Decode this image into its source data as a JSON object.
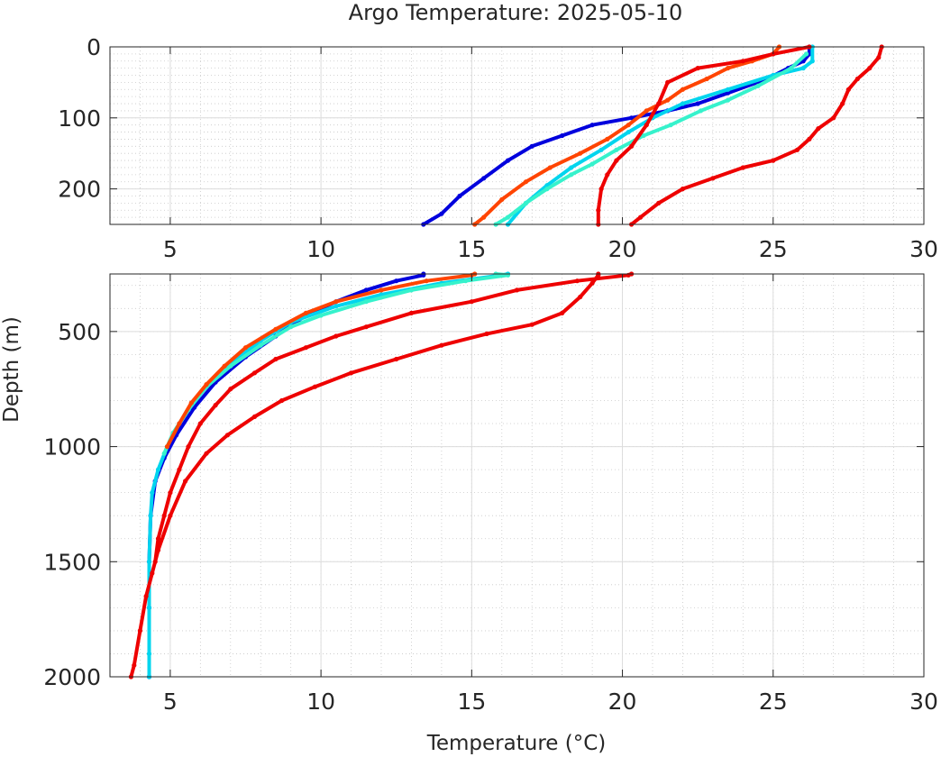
{
  "chart_data": {
    "type": "scatter",
    "title": "Argo Temperature: 2025-05-10",
    "xlabel": "Temperature (°C)",
    "ylabel": "Depth (m)",
    "grid": true,
    "minor_grid": true,
    "y_reversed": true,
    "panels": [
      {
        "name": "upper",
        "xlim": [
          3,
          30
        ],
        "ylim": [
          0,
          250
        ],
        "xticks": [
          "5",
          "10",
          "15",
          "20",
          "25",
          "30"
        ],
        "yticks": [
          "0",
          "100",
          "200"
        ],
        "xtick_values": [
          5,
          10,
          15,
          20,
          25,
          30
        ],
        "ytick_values": [
          0,
          100,
          200
        ]
      },
      {
        "name": "lower",
        "xlim": [
          3,
          30
        ],
        "ylim": [
          250,
          2000
        ],
        "xticks": [
          "5",
          "10",
          "15",
          "20",
          "25",
          "30"
        ],
        "yticks": [
          "500",
          "1000",
          "1500",
          "2000"
        ],
        "xtick_values": [
          5,
          10,
          15,
          20,
          25,
          30
        ],
        "ytick_values": [
          500,
          1000,
          1500,
          2000
        ]
      }
    ],
    "series": [
      {
        "color": "#0000dd",
        "points": [
          [
            26.2,
            0
          ],
          [
            26.2,
            10
          ],
          [
            26.0,
            20
          ],
          [
            25.5,
            30
          ],
          [
            24.8,
            45
          ],
          [
            23.5,
            65
          ],
          [
            22.5,
            80
          ],
          [
            21.5,
            90
          ],
          [
            20.3,
            100
          ],
          [
            19.0,
            110
          ],
          [
            18.0,
            125
          ],
          [
            17.0,
            140
          ],
          [
            16.2,
            160
          ],
          [
            15.4,
            185
          ],
          [
            14.6,
            210
          ],
          [
            14.0,
            235
          ],
          [
            13.4,
            250
          ],
          [
            13.4,
            255
          ],
          [
            12.5,
            280
          ],
          [
            11.5,
            320
          ],
          [
            10.5,
            370
          ],
          [
            9.5,
            430
          ],
          [
            8.5,
            520
          ],
          [
            7.5,
            610
          ],
          [
            6.5,
            720
          ],
          [
            5.8,
            830
          ],
          [
            5.2,
            950
          ],
          [
            4.8,
            1050
          ],
          [
            4.5,
            1150
          ],
          [
            4.35,
            1300
          ],
          [
            4.3,
            1500
          ],
          [
            4.3,
            1700
          ],
          [
            4.3,
            2000
          ]
        ]
      },
      {
        "color": "#00d5ee",
        "points": [
          [
            26.3,
            0
          ],
          [
            26.3,
            20
          ],
          [
            26.0,
            30
          ],
          [
            25.0,
            40
          ],
          [
            23.5,
            60
          ],
          [
            22.0,
            80
          ],
          [
            21.0,
            100
          ],
          [
            20.2,
            120
          ],
          [
            19.3,
            145
          ],
          [
            18.3,
            170
          ],
          [
            17.5,
            195
          ],
          [
            16.8,
            220
          ],
          [
            16.2,
            250
          ],
          [
            16.0,
            255
          ],
          [
            14.0,
            290
          ],
          [
            12.0,
            340
          ],
          [
            10.5,
            390
          ],
          [
            9.0,
            460
          ],
          [
            8.0,
            540
          ],
          [
            7.2,
            620
          ],
          [
            6.5,
            700
          ],
          [
            5.8,
            800
          ],
          [
            5.3,
            900
          ],
          [
            4.9,
            1000
          ],
          [
            4.6,
            1100
          ],
          [
            4.4,
            1200
          ],
          [
            4.35,
            1300
          ],
          [
            4.3,
            1500
          ],
          [
            4.3,
            1700
          ],
          [
            4.3,
            1900
          ],
          [
            4.3,
            2000
          ]
        ]
      },
      {
        "color": "#36f2cc",
        "points": [
          [
            26.1,
            10
          ],
          [
            25.6,
            30
          ],
          [
            24.5,
            55
          ],
          [
            23.5,
            75
          ],
          [
            22.6,
            90
          ],
          [
            21.6,
            110
          ],
          [
            20.7,
            125
          ],
          [
            19.8,
            145
          ],
          [
            19.0,
            165
          ],
          [
            18.3,
            180
          ],
          [
            17.5,
            200
          ],
          [
            16.8,
            220
          ],
          [
            16.2,
            240
          ],
          [
            15.8,
            250
          ],
          [
            16.2,
            255
          ],
          [
            14.8,
            280
          ],
          [
            13.0,
            320
          ],
          [
            11.5,
            370
          ],
          [
            10.0,
            430
          ],
          [
            9.0,
            480
          ],
          [
            8.0,
            560
          ],
          [
            7.0,
            650
          ],
          [
            6.2,
            740
          ],
          [
            5.6,
            840
          ],
          [
            5.1,
            940
          ],
          [
            4.8,
            1030
          ]
        ]
      },
      {
        "color": "#ff4400",
        "points": [
          [
            25.2,
            0
          ],
          [
            25.0,
            10
          ],
          [
            24.3,
            20
          ],
          [
            23.5,
            30
          ],
          [
            22.8,
            45
          ],
          [
            22.0,
            60
          ],
          [
            21.5,
            75
          ],
          [
            20.8,
            90
          ],
          [
            20.2,
            110
          ],
          [
            19.5,
            130
          ],
          [
            18.6,
            150
          ],
          [
            17.6,
            170
          ],
          [
            16.8,
            190
          ],
          [
            16.0,
            215
          ],
          [
            15.4,
            240
          ],
          [
            15.1,
            250
          ],
          [
            15.0,
            255
          ],
          [
            13.5,
            280
          ],
          [
            12.0,
            320
          ],
          [
            10.5,
            370
          ],
          [
            9.5,
            420
          ],
          [
            8.5,
            490
          ],
          [
            7.5,
            570
          ],
          [
            6.8,
            650
          ],
          [
            6.2,
            730
          ],
          [
            5.7,
            810
          ],
          [
            5.3,
            900
          ],
          [
            4.9,
            1000
          ]
        ]
      },
      {
        "color": "#ee0000",
        "points": [
          [
            26.2,
            0
          ],
          [
            25.0,
            10
          ],
          [
            24.0,
            20
          ],
          [
            22.5,
            30
          ],
          [
            21.5,
            50
          ],
          [
            21.2,
            80
          ],
          [
            20.8,
            110
          ],
          [
            20.3,
            140
          ],
          [
            19.8,
            160
          ],
          [
            19.5,
            180
          ],
          [
            19.3,
            200
          ],
          [
            19.2,
            230
          ],
          [
            19.2,
            250
          ],
          [
            19.2,
            255
          ],
          [
            19.0,
            290
          ],
          [
            18.6,
            350
          ],
          [
            18.0,
            420
          ],
          [
            17.0,
            470
          ],
          [
            15.5,
            510
          ],
          [
            14.0,
            560
          ],
          [
            12.5,
            620
          ],
          [
            11.0,
            680
          ],
          [
            9.8,
            740
          ],
          [
            8.7,
            800
          ],
          [
            7.8,
            870
          ],
          [
            6.9,
            950
          ],
          [
            6.2,
            1030
          ],
          [
            5.5,
            1150
          ],
          [
            5.0,
            1300
          ],
          [
            4.6,
            1450
          ],
          [
            4.4,
            1550
          ],
          [
            4.2,
            1650
          ],
          [
            4.0,
            1800
          ],
          [
            3.8,
            1950
          ],
          [
            3.7,
            2000
          ]
        ]
      },
      {
        "color": "#ee0000",
        "points": [
          [
            28.6,
            0
          ],
          [
            28.5,
            15
          ],
          [
            28.2,
            30
          ],
          [
            27.8,
            45
          ],
          [
            27.5,
            60
          ],
          [
            27.3,
            80
          ],
          [
            27.0,
            100
          ],
          [
            26.5,
            115
          ],
          [
            26.2,
            130
          ],
          [
            25.8,
            145
          ],
          [
            25.0,
            160
          ],
          [
            24.0,
            170
          ],
          [
            23.0,
            185
          ],
          [
            22.0,
            200
          ],
          [
            21.2,
            220
          ],
          [
            20.6,
            240
          ],
          [
            20.3,
            250
          ],
          [
            20.2,
            255
          ],
          [
            18.5,
            280
          ],
          [
            16.5,
            320
          ],
          [
            15.0,
            370
          ],
          [
            13.0,
            420
          ],
          [
            11.5,
            480
          ],
          [
            10.5,
            520
          ],
          [
            9.5,
            570
          ],
          [
            8.5,
            620
          ],
          [
            7.8,
            680
          ],
          [
            7.0,
            750
          ],
          [
            6.5,
            820
          ],
          [
            6.0,
            900
          ],
          [
            5.6,
            1000
          ],
          [
            5.3,
            1100
          ],
          [
            5.0,
            1200
          ],
          [
            4.8,
            1300
          ],
          [
            4.6,
            1400
          ],
          [
            4.5,
            1500
          ]
        ]
      }
    ]
  }
}
